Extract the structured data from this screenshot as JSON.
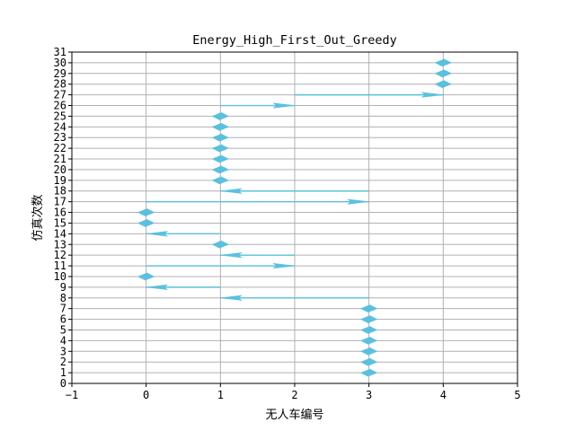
{
  "chart_data": {
    "type": "scatter",
    "title": "Energy_High_First_Out_Greedy",
    "xlabel": "无人车编号",
    "ylabel": "仿真次数",
    "xlim": [
      -1,
      5
    ],
    "ylim": [
      0,
      31
    ],
    "x_ticks": [
      -1,
      0,
      1,
      2,
      3,
      4,
      5
    ],
    "y_ticks": [
      0,
      1,
      2,
      3,
      4,
      5,
      6,
      7,
      8,
      9,
      10,
      11,
      12,
      13,
      14,
      15,
      16,
      17,
      18,
      19,
      20,
      21,
      22,
      23,
      24,
      25,
      26,
      27,
      28,
      29,
      30,
      31
    ],
    "grid": true,
    "grid_color": "#b0b0b0",
    "marker_color": "#5bc0de",
    "marker": "arrow",
    "points": [
      {
        "sim": 1,
        "from": 3,
        "to": 3
      },
      {
        "sim": 2,
        "from": 3,
        "to": 3
      },
      {
        "sim": 3,
        "from": 3,
        "to": 3
      },
      {
        "sim": 4,
        "from": 3,
        "to": 3
      },
      {
        "sim": 5,
        "from": 3,
        "to": 3
      },
      {
        "sim": 6,
        "from": 3,
        "to": 3
      },
      {
        "sim": 7,
        "from": 3,
        "to": 3
      },
      {
        "sim": 8,
        "from": 3,
        "to": 1
      },
      {
        "sim": 9,
        "from": 1,
        "to": 0
      },
      {
        "sim": 10,
        "from": 0,
        "to": 0
      },
      {
        "sim": 11,
        "from": 0,
        "to": 2
      },
      {
        "sim": 12,
        "from": 2,
        "to": 1
      },
      {
        "sim": 13,
        "from": 1,
        "to": 1
      },
      {
        "sim": 14,
        "from": 1,
        "to": 0
      },
      {
        "sim": 15,
        "from": 0,
        "to": 0
      },
      {
        "sim": 16,
        "from": 0,
        "to": 0
      },
      {
        "sim": 17,
        "from": 0,
        "to": 3
      },
      {
        "sim": 18,
        "from": 3,
        "to": 1
      },
      {
        "sim": 19,
        "from": 1,
        "to": 1
      },
      {
        "sim": 20,
        "from": 1,
        "to": 1
      },
      {
        "sim": 21,
        "from": 1,
        "to": 1
      },
      {
        "sim": 22,
        "from": 1,
        "to": 1
      },
      {
        "sim": 23,
        "from": 1,
        "to": 1
      },
      {
        "sim": 24,
        "from": 1,
        "to": 1
      },
      {
        "sim": 25,
        "from": 1,
        "to": 1
      },
      {
        "sim": 26,
        "from": 1,
        "to": 2
      },
      {
        "sim": 27,
        "from": 2,
        "to": 4
      },
      {
        "sim": 28,
        "from": 4,
        "to": 4
      },
      {
        "sim": 29,
        "from": 4,
        "to": 4
      },
      {
        "sim": 30,
        "from": 4,
        "to": 4
      }
    ]
  }
}
